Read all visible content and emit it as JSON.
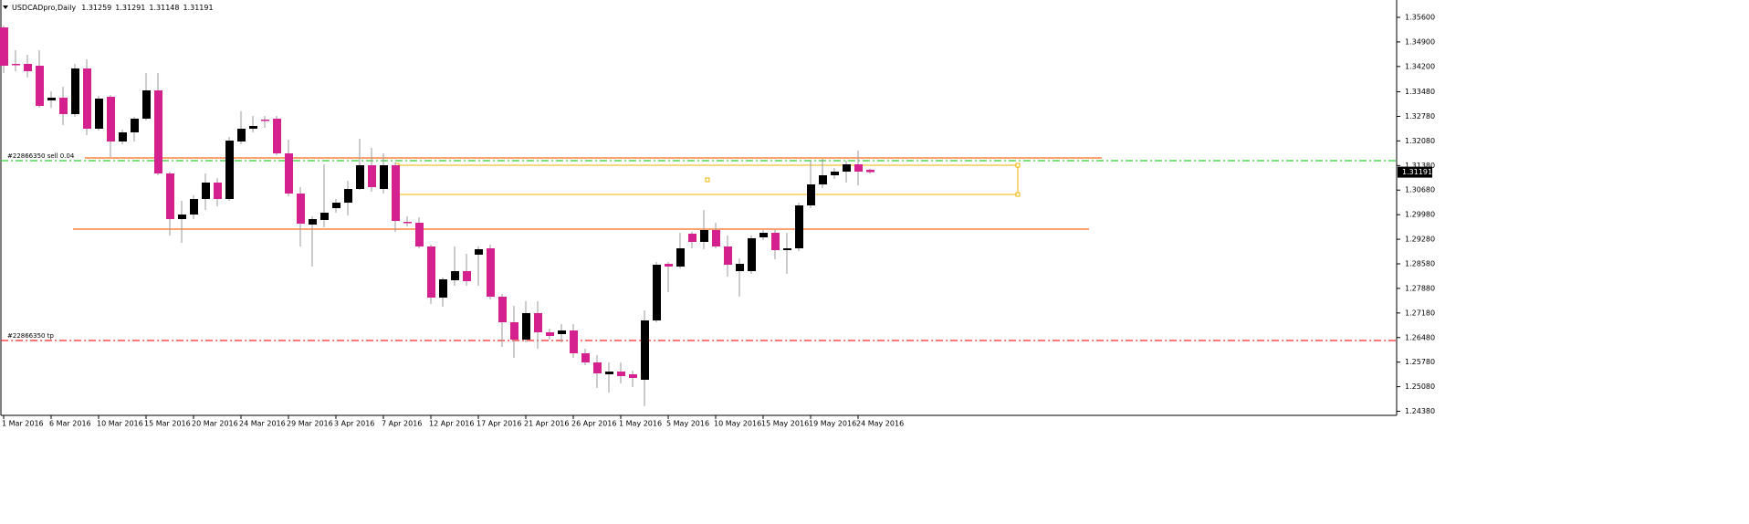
{
  "chart_data": {
    "type": "candlestick",
    "title": "USDCADpro,Daily",
    "categories": [
      "1 Mar 2016",
      null,
      null,
      null,
      "6 Mar 2016",
      null,
      null,
      null,
      "10 Mar 2016",
      null,
      null,
      null,
      "15 Mar 2016",
      null,
      null,
      null,
      "20 Mar 2016",
      null,
      null,
      null,
      "24 Mar 2016",
      null,
      null,
      null,
      "29 Mar 2016",
      null,
      null,
      null,
      "3 Apr 2016",
      null,
      null,
      null,
      "7 Apr 2016",
      null,
      null,
      null,
      "12 Apr 2016",
      null,
      null,
      null,
      "17 Apr 2016",
      null,
      null,
      null,
      "21 Apr 2016",
      null,
      null,
      null,
      "26 Apr 2016",
      null,
      null,
      null,
      "1 May 2016",
      null,
      null,
      null,
      "5 May 2016",
      null,
      null,
      null,
      "10 May 2016",
      null,
      null,
      null,
      "15 May 2016",
      null,
      null,
      null,
      "19 May 2016",
      null,
      null,
      null,
      "24 May 2016",
      null
    ],
    "open": [
      1.35314,
      1.34274,
      1.34274,
      1.34222,
      1.33234,
      1.33312,
      1.32844,
      1.34144,
      1.32428,
      1.33338,
      1.32064,
      1.32324,
      1.32714,
      1.3352,
      1.31154,
      1.29854,
      1.29984,
      1.30426,
      1.30894,
      1.30426,
      1.32064,
      1.32428,
      1.32688,
      1.32714,
      1.31726,
      1.30582,
      1.29698,
      1.29828,
      1.30166,
      1.30322,
      1.30712,
      1.31388,
      1.30712,
      1.31388,
      1.29776,
      1.2975,
      1.29074,
      1.27618,
      1.28112,
      1.28372,
      1.2884,
      1.29022,
      1.27644,
      1.26916,
      1.26422,
      1.27176,
      1.2663,
      1.26578,
      1.26682,
      1.26032,
      1.25772,
      1.25434,
      1.25512,
      1.25434,
      1.25278,
      1.26968,
      1.2858,
      1.28502,
      1.29438,
      1.29204,
      1.29542,
      1.29074,
      1.28372,
      1.28372,
      1.29334,
      1.29464,
      1.2897,
      1.29022,
      1.30244,
      1.30842,
      1.31102,
      1.31206,
      1.31414,
      1.31259
    ],
    "high": [
      1.35366,
      1.34664,
      1.34534,
      1.34664,
      1.33494,
      1.33624,
      1.34274,
      1.34404,
      1.33364,
      1.3339,
      1.32402,
      1.32766,
      1.34014,
      1.34014,
      1.31206,
      1.30374,
      1.3053,
      1.31154,
      1.31024,
      1.32194,
      1.32922,
      1.32792,
      1.32792,
      1.32792,
      1.32116,
      1.30764,
      1.29932,
      1.31414,
      1.30426,
      1.30946,
      1.32142,
      1.31882,
      1.31726,
      1.31466,
      1.29932,
      1.29906,
      1.29126,
      1.2819,
      1.29074,
      1.28866,
      1.29074,
      1.29126,
      1.27722,
      1.27384,
      1.27514,
      1.27514,
      1.26734,
      1.26864,
      1.26864,
      1.26162,
      1.2598,
      1.25772,
      1.25772,
      1.25538,
      1.27254,
      1.28632,
      1.28632,
      1.29464,
      1.2949,
      1.30114,
      1.2975,
      1.29386,
      1.28736,
      1.29386,
      1.29542,
      1.29542,
      1.29464,
      1.30322,
      1.31518,
      1.3157,
      1.3131,
      1.31518,
      1.31804,
      1.31291
    ],
    "low": [
      1.34014,
      1.34066,
      1.33884,
      1.33026,
      1.33026,
      1.32532,
      1.32766,
      1.32246,
      1.32376,
      1.31622,
      1.31986,
      1.32064,
      1.32662,
      1.31102,
      1.29386,
      1.29178,
      1.29854,
      1.30114,
      1.30218,
      1.30374,
      1.31986,
      1.32324,
      1.32454,
      1.31674,
      1.30504,
      1.29074,
      1.28502,
      1.2962,
      1.30036,
      1.29958,
      1.30686,
      1.30634,
      1.30582,
      1.2949,
      1.29646,
      1.29022,
      1.27436,
      1.27358,
      1.27956,
      1.27956,
      1.27956,
      1.27566,
      1.26214,
      1.25902,
      1.26344,
      1.26162,
      1.26422,
      1.26344,
      1.25902,
      1.25694,
      1.25044,
      1.24914,
      1.25174,
      1.2507,
      1.24524,
      1.26916,
      1.27774,
      1.2845,
      1.29022,
      1.28996,
      1.29022,
      1.28216,
      1.27644,
      1.28294,
      1.29256,
      1.2871,
      1.28294,
      1.28944,
      1.30166,
      1.30738,
      1.30998,
      1.30894,
      1.30816,
      1.31148
    ],
    "close": [
      1.34222,
      1.34248,
      1.34066,
      1.33078,
      1.33312,
      1.32844,
      1.34144,
      1.32428,
      1.33286,
      1.32064,
      1.32324,
      1.32714,
      1.3352,
      1.31154,
      1.29854,
      1.29984,
      1.30426,
      1.30894,
      1.30426,
      1.3209,
      1.32428,
      1.32506,
      1.32662,
      1.31726,
      1.30582,
      1.29724,
      1.29854,
      1.30036,
      1.30322,
      1.30712,
      1.31388,
      1.30764,
      1.31388,
      1.29802,
      1.2975,
      1.29074,
      1.27618,
      1.28138,
      1.28372,
      1.28086,
      1.28996,
      1.27644,
      1.26916,
      1.26422,
      1.27176,
      1.2663,
      1.26526,
      1.26682,
      1.26032,
      1.25772,
      1.2546,
      1.25512,
      1.25382,
      1.2533,
      1.26968,
      1.28554,
      1.28502,
      1.29022,
      1.29204,
      1.29542,
      1.29074,
      1.28554,
      1.2858,
      1.29308,
      1.29464,
      1.2897,
      1.29022,
      1.30244,
      1.30842,
      1.31102,
      1.31206,
      1.31414,
      1.31206,
      1.31191
    ],
    "up_color": "#000000",
    "down_color": "#d4218f",
    "wick_color": "#9a9a9a",
    "ylim": [
      1.24264,
      1.36094
    ],
    "yticks": [
      {
        "value": 1.356,
        "label": "1.35600"
      },
      {
        "value": 1.349,
        "label": "1.34900"
      },
      {
        "value": 1.342,
        "label": "1.34200"
      },
      {
        "value": 1.3348,
        "label": "1.33480"
      },
      {
        "value": 1.3278,
        "label": "1.32780"
      },
      {
        "value": 1.3208,
        "label": "1.32080"
      },
      {
        "value": 1.3138,
        "label": "1.31380"
      },
      {
        "value": 1.3068,
        "label": "1.30680"
      },
      {
        "value": 1.2998,
        "label": "1.29980"
      },
      {
        "value": 1.2928,
        "label": "1.29280"
      },
      {
        "value": 1.2858,
        "label": "1.28580"
      },
      {
        "value": 1.2788,
        "label": "1.27880"
      },
      {
        "value": 1.2718,
        "label": "1.27180"
      },
      {
        "value": 1.2648,
        "label": "1.26480"
      },
      {
        "value": 1.2578,
        "label": "1.25780"
      },
      {
        "value": 1.2508,
        "label": "1.25080"
      },
      {
        "value": 1.2438,
        "label": "1.24380"
      }
    ],
    "levels": [
      {
        "price": 1.31596,
        "color": "#ff6a1a",
        "style": "solid"
      },
      {
        "price": 1.29568,
        "color": "#ff6a1a",
        "style": "solid"
      },
      {
        "price": 1.31518,
        "label": "#22866350 sell 0.04",
        "color": "#33cc33",
        "style": "dashdot"
      },
      {
        "price": 1.26396,
        "label": "#22866350 tp",
        "color": "#ff2020",
        "style": "dashdot"
      }
    ],
    "rectangle": {
      "top": 1.31388,
      "bottom": 1.30556,
      "color": "#f0b000"
    }
  }
}
